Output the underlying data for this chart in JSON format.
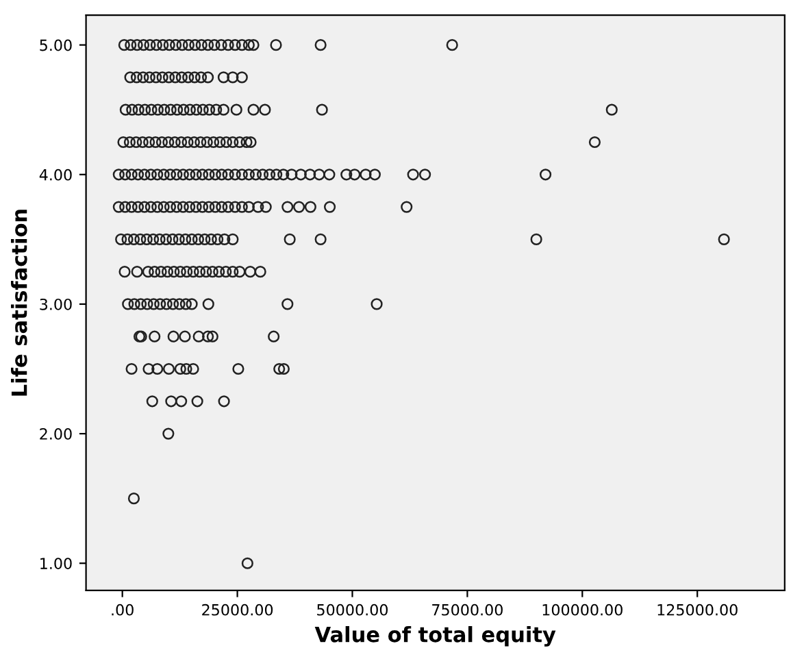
{
  "chart_data": {
    "type": "scatter",
    "xlabel": "Value of total equity",
    "ylabel": "Life satisfaction",
    "xlim": [
      -7900,
      144000
    ],
    "ylim": [
      0.79,
      5.23
    ],
    "xticks": [
      {
        "value": 0,
        "label": ".00"
      },
      {
        "value": 25000,
        "label": "25000.00"
      },
      {
        "value": 50000,
        "label": "50000.00"
      },
      {
        "value": 75000,
        "label": "75000.00"
      },
      {
        "value": 100000,
        "label": "100000.00"
      },
      {
        "value": 125000,
        "label": "125000.00"
      }
    ],
    "yticks": [
      {
        "value": 1,
        "label": "1.00"
      },
      {
        "value": 2,
        "label": "2.00"
      },
      {
        "value": 3,
        "label": "3.00"
      },
      {
        "value": 4,
        "label": "4.00"
      },
      {
        "value": 5,
        "label": "5.00"
      }
    ],
    "marker": "circle",
    "grid": false,
    "series": [
      {
        "color": "#222222",
        "x": [
          400,
          1800,
          3200,
          4600,
          6000,
          7400,
          8800,
          10200,
          11600,
          13000,
          14400,
          15800,
          17200,
          18600,
          20000,
          21500,
          23000,
          24500,
          26000,
          27500,
          28500,
          33400,
          43100,
          71700
        ],
        "values": [
          5,
          5,
          5,
          5,
          5,
          5,
          5,
          5,
          5,
          5,
          5,
          5,
          5,
          5,
          5,
          5,
          5,
          5,
          5,
          5,
          5,
          5,
          5,
          5
        ]
      },
      {
        "color": "#222222",
        "x": [
          1700,
          3100,
          4500,
          5900,
          7300,
          8700,
          10100,
          11500,
          12900,
          14300,
          15700,
          17100,
          18600,
          22000,
          24000,
          26000
        ],
        "values": [
          4.75,
          4.75,
          4.75,
          4.75,
          4.75,
          4.75,
          4.75,
          4.75,
          4.75,
          4.75,
          4.75,
          4.75,
          4.75,
          4.75,
          4.75,
          4.75
        ]
      },
      {
        "color": "#222222",
        "x": [
          700,
          2100,
          3500,
          4900,
          6300,
          7700,
          9100,
          10500,
          11900,
          13300,
          14700,
          16100,
          17500,
          18900,
          20400,
          22000,
          24800,
          28500,
          31000,
          43400,
          106400
        ],
        "values": [
          4.5,
          4.5,
          4.5,
          4.5,
          4.5,
          4.5,
          4.5,
          4.5,
          4.5,
          4.5,
          4.5,
          4.5,
          4.5,
          4.5,
          4.5,
          4.5,
          4.5,
          4.5,
          4.5,
          4.5,
          4.5
        ]
      },
      {
        "color": "#222222",
        "x": [
          200,
          1600,
          3000,
          4400,
          5800,
          7200,
          8600,
          10000,
          11400,
          12800,
          14200,
          15600,
          17000,
          18400,
          19800,
          21200,
          22600,
          24000,
          25500,
          27000,
          27900,
          102700
        ],
        "values": [
          4.25,
          4.25,
          4.25,
          4.25,
          4.25,
          4.25,
          4.25,
          4.25,
          4.25,
          4.25,
          4.25,
          4.25,
          4.25,
          4.25,
          4.25,
          4.25,
          4.25,
          4.25,
          4.25,
          4.25,
          4.25,
          4.25
        ]
      },
      {
        "color": "#222222",
        "x": [
          -800,
          600,
          2000,
          3400,
          4800,
          6200,
          7600,
          9000,
          10400,
          11800,
          13200,
          14600,
          16000,
          17400,
          18800,
          20200,
          21600,
          23000,
          24500,
          26000,
          27500,
          29000,
          30500,
          32000,
          33500,
          35000,
          36800,
          38800,
          40800,
          42800,
          45000,
          48700,
          50500,
          52900,
          54900,
          63200,
          65800,
          92000
        ],
        "values": [
          4,
          4,
          4,
          4,
          4,
          4,
          4,
          4,
          4,
          4,
          4,
          4,
          4,
          4,
          4,
          4,
          4,
          4,
          4,
          4,
          4,
          4,
          4,
          4,
          4,
          4,
          4,
          4,
          4,
          4,
          4,
          4,
          4,
          4,
          4,
          4,
          4,
          4
        ]
      },
      {
        "color": "#222222",
        "x": [
          -800,
          600,
          2000,
          3400,
          4800,
          6200,
          7600,
          9000,
          10400,
          11800,
          13200,
          14600,
          16000,
          17400,
          18800,
          20200,
          21600,
          23000,
          24500,
          26000,
          27500,
          29500,
          31200,
          35900,
          38400,
          40900,
          45100,
          61800
        ],
        "values": [
          3.75,
          3.75,
          3.75,
          3.75,
          3.75,
          3.75,
          3.75,
          3.75,
          3.75,
          3.75,
          3.75,
          3.75,
          3.75,
          3.75,
          3.75,
          3.75,
          3.75,
          3.75,
          3.75,
          3.75,
          3.75,
          3.75,
          3.75,
          3.75,
          3.75,
          3.75,
          3.75,
          3.75
        ]
      },
      {
        "color": "#222222",
        "x": [
          -300,
          1100,
          2500,
          3900,
          5300,
          6700,
          8100,
          9500,
          10900,
          12300,
          13700,
          15100,
          16500,
          17900,
          19300,
          20700,
          22200,
          24000,
          36400,
          43100,
          90000,
          130800
        ],
        "values": [
          3.5,
          3.5,
          3.5,
          3.5,
          3.5,
          3.5,
          3.5,
          3.5,
          3.5,
          3.5,
          3.5,
          3.5,
          3.5,
          3.5,
          3.5,
          3.5,
          3.5,
          3.5,
          3.5,
          3.5,
          3.5,
          3.5
        ]
      },
      {
        "color": "#222222",
        "x": [
          500,
          3200,
          5600,
          7000,
          8400,
          9800,
          11200,
          12600,
          14000,
          15400,
          16800,
          18200,
          19600,
          21000,
          22500,
          24000,
          25500,
          27800,
          30000
        ],
        "values": [
          3.25,
          3.25,
          3.25,
          3.25,
          3.25,
          3.25,
          3.25,
          3.25,
          3.25,
          3.25,
          3.25,
          3.25,
          3.25,
          3.25,
          3.25,
          3.25,
          3.25,
          3.25,
          3.25
        ]
      },
      {
        "color": "#222222",
        "x": [
          1200,
          2600,
          4000,
          5400,
          6800,
          8200,
          9600,
          11000,
          12400,
          13800,
          15100,
          18700,
          35900,
          55300
        ],
        "values": [
          3,
          3,
          3,
          3,
          3,
          3,
          3,
          3,
          3,
          3,
          3,
          3,
          3,
          3
        ]
      },
      {
        "color": "#222222",
        "x": [
          3700,
          4100,
          7000,
          11100,
          13600,
          16600,
          18600,
          19600,
          32900
        ],
        "values": [
          2.75,
          2.75,
          2.75,
          2.75,
          2.75,
          2.75,
          2.75,
          2.75,
          2.75
        ]
      },
      {
        "color": "#222222",
        "x": [
          2000,
          5700,
          7600,
          10100,
          12600,
          13900,
          15400,
          25200,
          34100,
          35100
        ],
        "values": [
          2.5,
          2.5,
          2.5,
          2.5,
          2.5,
          2.5,
          2.5,
          2.5,
          2.5,
          2.5
        ]
      },
      {
        "color": "#222222",
        "x": [
          6500,
          10600,
          12800,
          16300,
          22100
        ],
        "values": [
          2.25,
          2.25,
          2.25,
          2.25,
          2.25
        ]
      },
      {
        "color": "#222222",
        "x": [
          10000
        ],
        "values": [
          2
        ]
      },
      {
        "color": "#222222",
        "x": [
          2500
        ],
        "values": [
          1.5
        ]
      },
      {
        "color": "#222222",
        "x": [
          27200
        ],
        "values": [
          1
        ]
      }
    ]
  }
}
